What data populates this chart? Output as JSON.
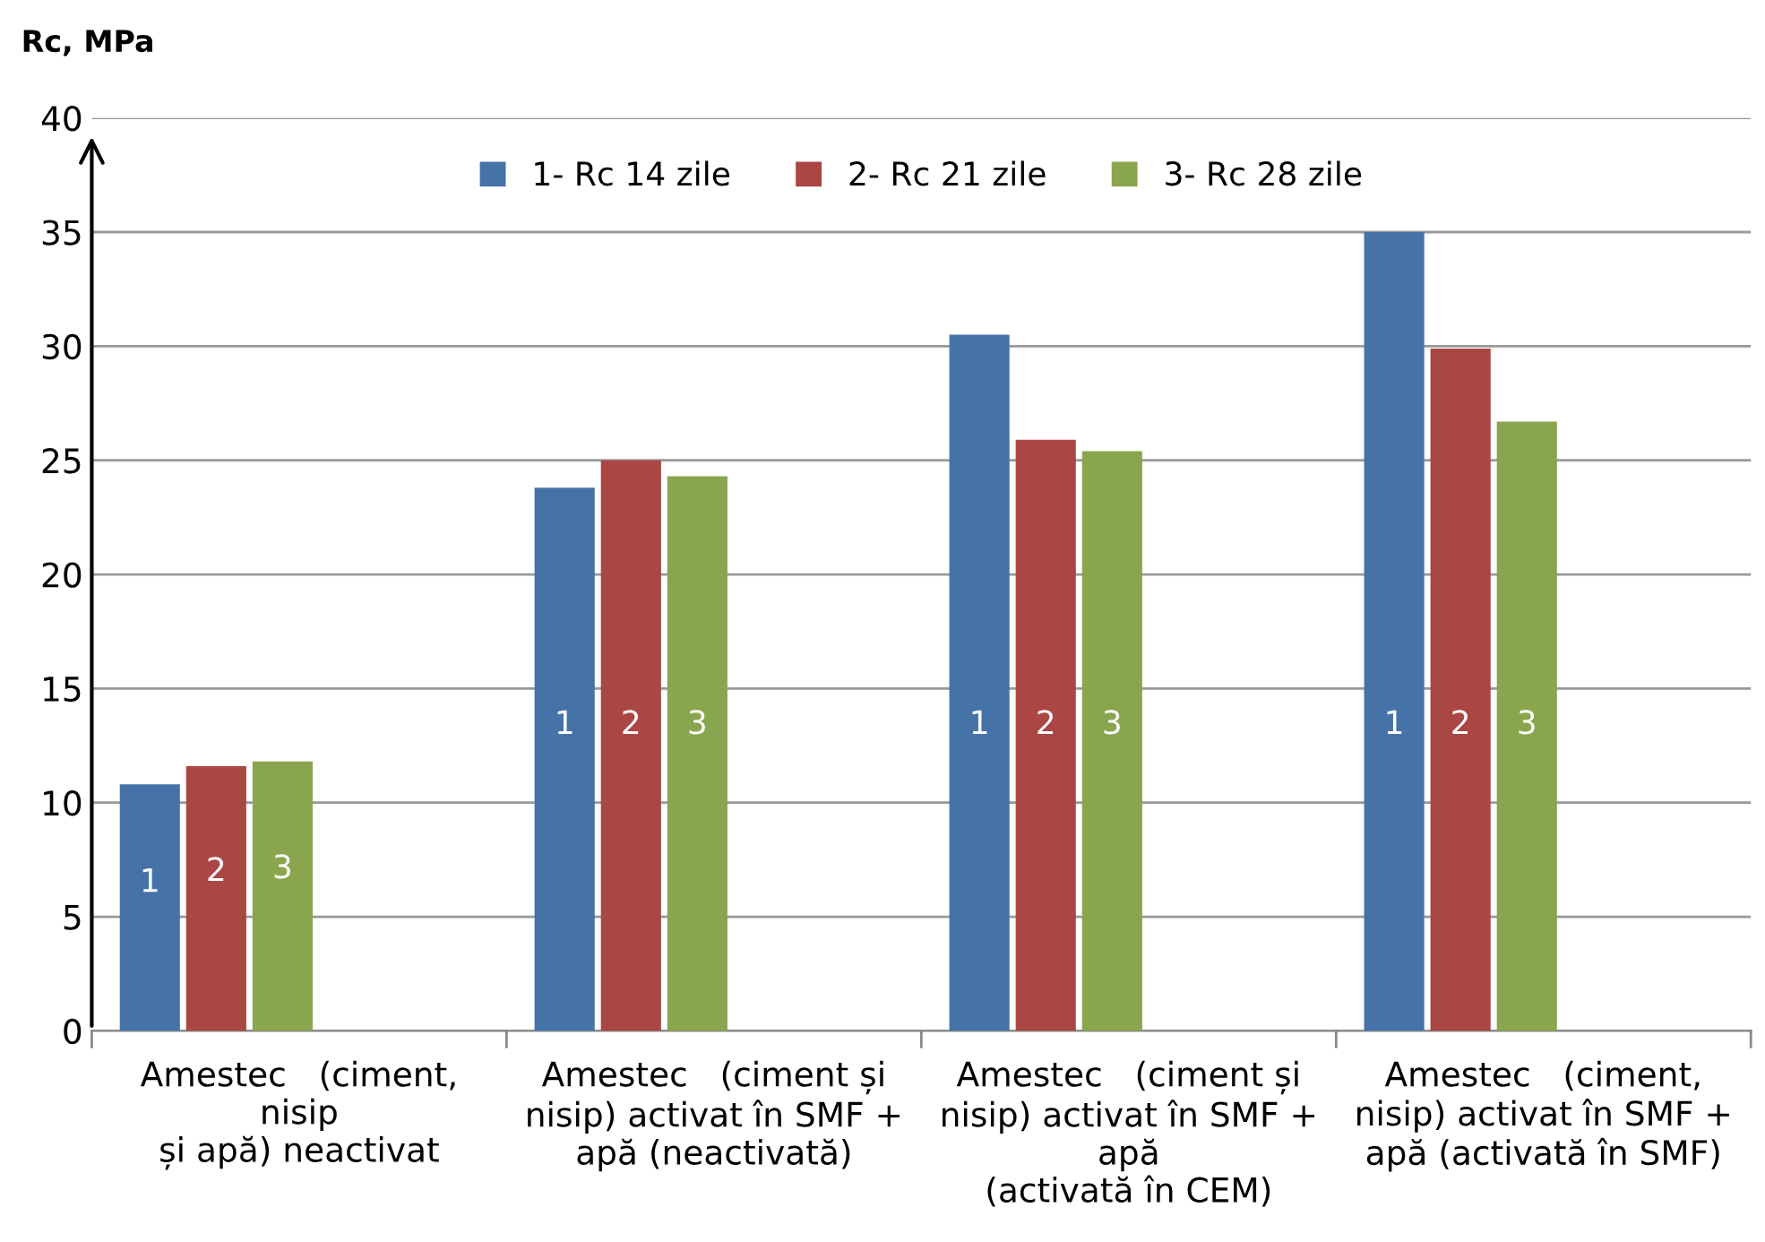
{
  "chart_data": {
    "type": "bar",
    "ylabel": "Rc, MPa",
    "categories": [
      "Amestec   (ciment,\nnisip\nși apă) neactivat",
      "Amestec   (ciment și\nnisip) activat în SMF +\napă (neactivată)",
      "Amestec   (ciment și\nnisip) activat în SMF +\napă\n(activată în CEM)",
      "Amestec   (ciment,\nnisip) activat în SMF +\napă (activată în SMF)"
    ],
    "series": [
      {
        "name": "1- Rc 14 zile",
        "color": "#4572a7",
        "values": [
          10.8,
          23.8,
          30.5,
          35.0
        ]
      },
      {
        "name": "2- Rc 21 zile",
        "color": "#aa4643",
        "values": [
          11.6,
          25.0,
          25.9,
          29.9
        ]
      },
      {
        "name": "3- Rc 28 zile",
        "color": "#89a54e",
        "values": [
          11.8,
          24.3,
          25.4,
          26.7
        ]
      }
    ],
    "annotations": [
      "1",
      "2",
      "3",
      "1",
      "2",
      "3",
      "1",
      "2",
      "3",
      "1",
      "2",
      "3"
    ],
    "ylim": [
      0,
      40
    ],
    "yticks": [
      0,
      5,
      10,
      15,
      20,
      25,
      30,
      35,
      40
    ],
    "grid": "y",
    "legend": "top"
  }
}
